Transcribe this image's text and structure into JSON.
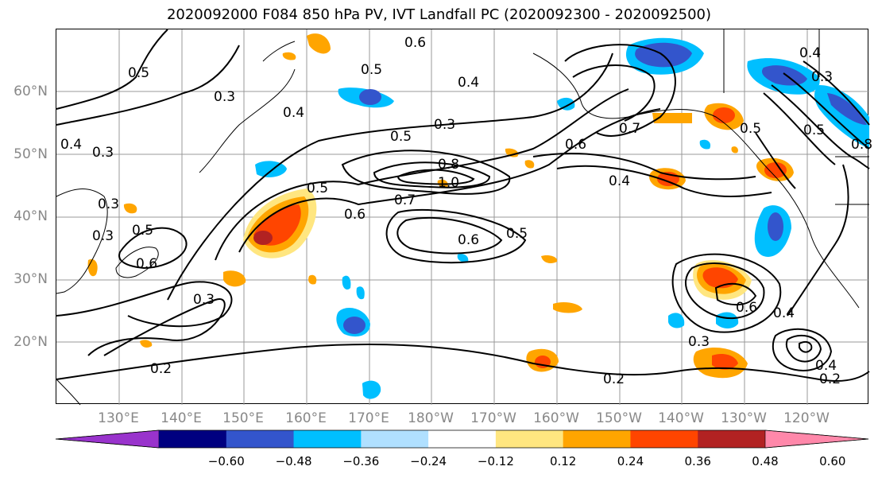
{
  "title": "2020092000 F084 850 hPa PV, IVT Landfall PC (2020092300 - 2020092500)",
  "lat_labels": [
    "60°N",
    "50°N",
    "40°N",
    "30°N",
    "20°N"
  ],
  "lon_labels": [
    "130°E",
    "140°E",
    "150°E",
    "160°E",
    "170°E",
    "180°W",
    "170°W",
    "160°W",
    "150°W",
    "140°W",
    "130°W",
    "120°W"
  ],
  "colorbar": {
    "colors": [
      "#9933cc",
      "#000080",
      "#3355cc",
      "#00bfff",
      "#b0e0ff",
      "#ffffff",
      "#ffe680",
      "#ffa500",
      "#ff4500",
      "#b22222",
      "#ff88aa"
    ],
    "tick_labels": [
      "−0.60",
      "−0.48",
      "−0.36",
      "−0.24",
      "−0.12",
      "0.12",
      "0.24",
      "0.36",
      "0.48",
      "0.60"
    ]
  },
  "contour_labels": [
    "0.6",
    "0.5",
    "0.4",
    "0.3",
    "0.5",
    "0.4",
    "0.3",
    "0.4",
    "0.3",
    "0.5",
    "0.3",
    "0.5",
    "0.8",
    "1.0",
    "0.7",
    "0.6",
    "0.6",
    "0.5",
    "0.5",
    "0.6",
    "0.3",
    "0.2",
    "0.3",
    "0.2",
    "0.2",
    "0.4",
    "0.7",
    "0.6",
    "0.4",
    "0.6",
    "0.4",
    "0.8",
    "0.3",
    "0.5",
    "0.4",
    "0.3",
    "0.5"
  ],
  "colors": {
    "land_line": "#000000",
    "contour": "#000000",
    "grid": "#999999"
  }
}
